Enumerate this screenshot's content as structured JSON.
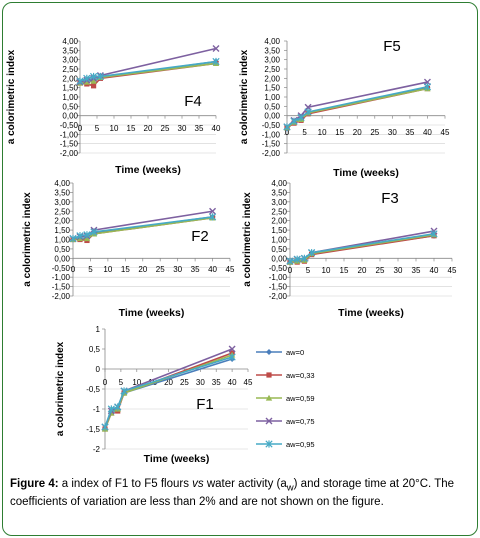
{
  "chart_data": [
    {
      "type": "line",
      "panel_label": "F4",
      "xlabel": "Time (weeks)",
      "ylabel": "a colorimetric index",
      "xlim": [
        0,
        40
      ],
      "ylim": [
        -2,
        4
      ],
      "x_ticks": [
        "0",
        "5",
        "10",
        "15",
        "20",
        "25",
        "30",
        "35",
        "40"
      ],
      "y_ticks": [
        "4,00",
        "3,50",
        "3,00",
        "2,50",
        "2,00",
        "1,50",
        "1,00",
        "0,50",
        "0,00",
        "-0,50",
        "-1,00",
        "-1,50",
        "-2,00"
      ],
      "x": [
        0,
        2,
        4,
        6,
        40
      ],
      "series": [
        {
          "name": "aw=0",
          "values": [
            1.8,
            1.85,
            1.9,
            2.05,
            2.9
          ]
        },
        {
          "name": "aw=0,33",
          "values": [
            1.75,
            1.7,
            1.6,
            2.0,
            2.8
          ]
        },
        {
          "name": "aw=0,59",
          "values": [
            1.75,
            1.8,
            1.85,
            2.05,
            2.8
          ]
        },
        {
          "name": "aw=0,75",
          "values": [
            1.8,
            1.9,
            2.0,
            2.15,
            3.6
          ]
        },
        {
          "name": "aw=0,95",
          "values": [
            1.85,
            2.0,
            2.1,
            2.1,
            2.9
          ]
        }
      ]
    },
    {
      "type": "line",
      "panel_label": "F5",
      "xlabel": "Time (weeks)",
      "ylabel": "a colorimetric index",
      "xlim": [
        0,
        45
      ],
      "ylim": [
        -2,
        4
      ],
      "x_ticks": [
        "0",
        "5",
        "10",
        "15",
        "20",
        "25",
        "30",
        "35",
        "40",
        "45"
      ],
      "y_ticks": [
        "4,00",
        "3,50",
        "3,00",
        "2,50",
        "2,00",
        "1,50",
        "1,00",
        "0,50",
        "0,00",
        "-0,50",
        "-1,00",
        "-1,50",
        "-2,00"
      ],
      "x": [
        0,
        2,
        4,
        6,
        40
      ],
      "series": [
        {
          "name": "aw=0",
          "values": [
            -0.7,
            -0.35,
            -0.2,
            0.15,
            1.5
          ]
        },
        {
          "name": "aw=0,33",
          "values": [
            -0.65,
            -0.4,
            -0.25,
            0.1,
            1.45
          ]
        },
        {
          "name": "aw=0,59",
          "values": [
            -0.65,
            -0.35,
            -0.2,
            0.15,
            1.45
          ]
        },
        {
          "name": "aw=0,75",
          "values": [
            -0.6,
            -0.25,
            0.0,
            0.45,
            1.8
          ]
        },
        {
          "name": "aw=0,95",
          "values": [
            -0.6,
            -0.3,
            -0.1,
            0.2,
            1.55
          ]
        }
      ]
    },
    {
      "type": "line",
      "panel_label": "F2",
      "xlabel": "Time (weeks)",
      "ylabel": "a colorimetric index",
      "xlim": [
        0,
        45
      ],
      "ylim": [
        -2,
        4
      ],
      "x_ticks": [
        "0",
        "5",
        "10",
        "15",
        "20",
        "25",
        "30",
        "35",
        "40",
        "45"
      ],
      "y_ticks": [
        "4,00",
        "3,50",
        "3,00",
        "2,50",
        "2,00",
        "1,50",
        "1,00",
        "0,50",
        "0,00",
        "-0,50",
        "-1,00",
        "-1,50",
        "-2,00"
      ],
      "x": [
        0,
        2,
        4,
        6,
        40
      ],
      "series": [
        {
          "name": "aw=0",
          "values": [
            1.0,
            1.05,
            1.1,
            1.35,
            2.2
          ]
        },
        {
          "name": "aw=0,33",
          "values": [
            1.0,
            1.0,
            0.95,
            1.3,
            2.15
          ]
        },
        {
          "name": "aw=0,59",
          "values": [
            1.0,
            1.05,
            1.05,
            1.3,
            2.15
          ]
        },
        {
          "name": "aw=0,75",
          "values": [
            1.05,
            1.15,
            1.2,
            1.5,
            2.5
          ]
        },
        {
          "name": "aw=0,95",
          "values": [
            1.05,
            1.2,
            1.25,
            1.4,
            2.2
          ]
        }
      ]
    },
    {
      "type": "line",
      "panel_label": "F3",
      "xlabel": "Time (weeks)",
      "ylabel": "a colorimetric index",
      "xlim": [
        0,
        45
      ],
      "ylim": [
        -2,
        4
      ],
      "x_ticks": [
        "0",
        "5",
        "10",
        "15",
        "20",
        "25",
        "30",
        "35",
        "40",
        "45"
      ],
      "y_ticks": [
        "4,00",
        "3,50",
        "3,00",
        "2,50",
        "2,00",
        "1,50",
        "1,00",
        "0,50",
        "0,00",
        "-0,50",
        "-1,00",
        "-1,50",
        "-2,00"
      ],
      "x": [
        0,
        2,
        4,
        6,
        40
      ],
      "series": [
        {
          "name": "aw=0",
          "values": [
            -0.2,
            -0.15,
            -0.1,
            0.25,
            1.2
          ]
        },
        {
          "name": "aw=0,33",
          "values": [
            -0.2,
            -0.2,
            -0.15,
            0.2,
            1.2
          ]
        },
        {
          "name": "aw=0,59",
          "values": [
            -0.2,
            -0.15,
            -0.1,
            0.25,
            1.25
          ]
        },
        {
          "name": "aw=0,75",
          "values": [
            -0.15,
            -0.05,
            0.0,
            0.3,
            1.45
          ]
        },
        {
          "name": "aw=0,95",
          "values": [
            -0.15,
            -0.05,
            0.0,
            0.3,
            1.3
          ]
        }
      ]
    },
    {
      "type": "line",
      "panel_label": "F1",
      "xlabel": "Time (weeks)",
      "ylabel": "a colorimetric index",
      "xlim": [
        0,
        45
      ],
      "ylim": [
        -2,
        1
      ],
      "x_ticks": [
        "0",
        "5",
        "10",
        "15",
        "20",
        "25",
        "30",
        "35",
        "40",
        "45"
      ],
      "y_ticks": [
        "1",
        "0,5",
        "0",
        "-0,5",
        "-1",
        "-1,5",
        "-2"
      ],
      "x": [
        0,
        2,
        4,
        6,
        40
      ],
      "series": [
        {
          "name": "aw=0",
          "values": [
            -1.5,
            -1.05,
            -1.0,
            -0.6,
            0.25
          ]
        },
        {
          "name": "aw=0,33",
          "values": [
            -1.5,
            -1.1,
            -1.05,
            -0.6,
            0.4
          ]
        },
        {
          "name": "aw=0,59",
          "values": [
            -1.5,
            -1.1,
            -1.0,
            -0.6,
            0.35
          ]
        },
        {
          "name": "aw=0,75",
          "values": [
            -1.45,
            -1.05,
            -0.95,
            -0.55,
            0.5
          ]
        },
        {
          "name": "aw=0,95",
          "values": [
            -1.45,
            -1.0,
            -0.95,
            -0.55,
            0.3
          ]
        }
      ],
      "legend": "right"
    }
  ],
  "legend": {
    "entries": [
      "aw=0",
      "aw=0,33",
      "aw=0,59",
      "aw=0,75",
      "aw=0,95"
    ],
    "colors": [
      "#4a7ebb",
      "#be4b48",
      "#98b954",
      "#7d60a0",
      "#46aac5"
    ],
    "markers": [
      "diamond",
      "square",
      "triangle",
      "x",
      "star"
    ]
  },
  "caption": {
    "bold": "Figure 4:",
    "text_a": " a index of F1 to F5 flours ",
    "italic": "vs",
    "text_b": " water activity (a",
    "sub": "w",
    "text_c": ") and storage time at 20°C. The coefficients of variation are less than 2% and are not shown on the figure."
  }
}
